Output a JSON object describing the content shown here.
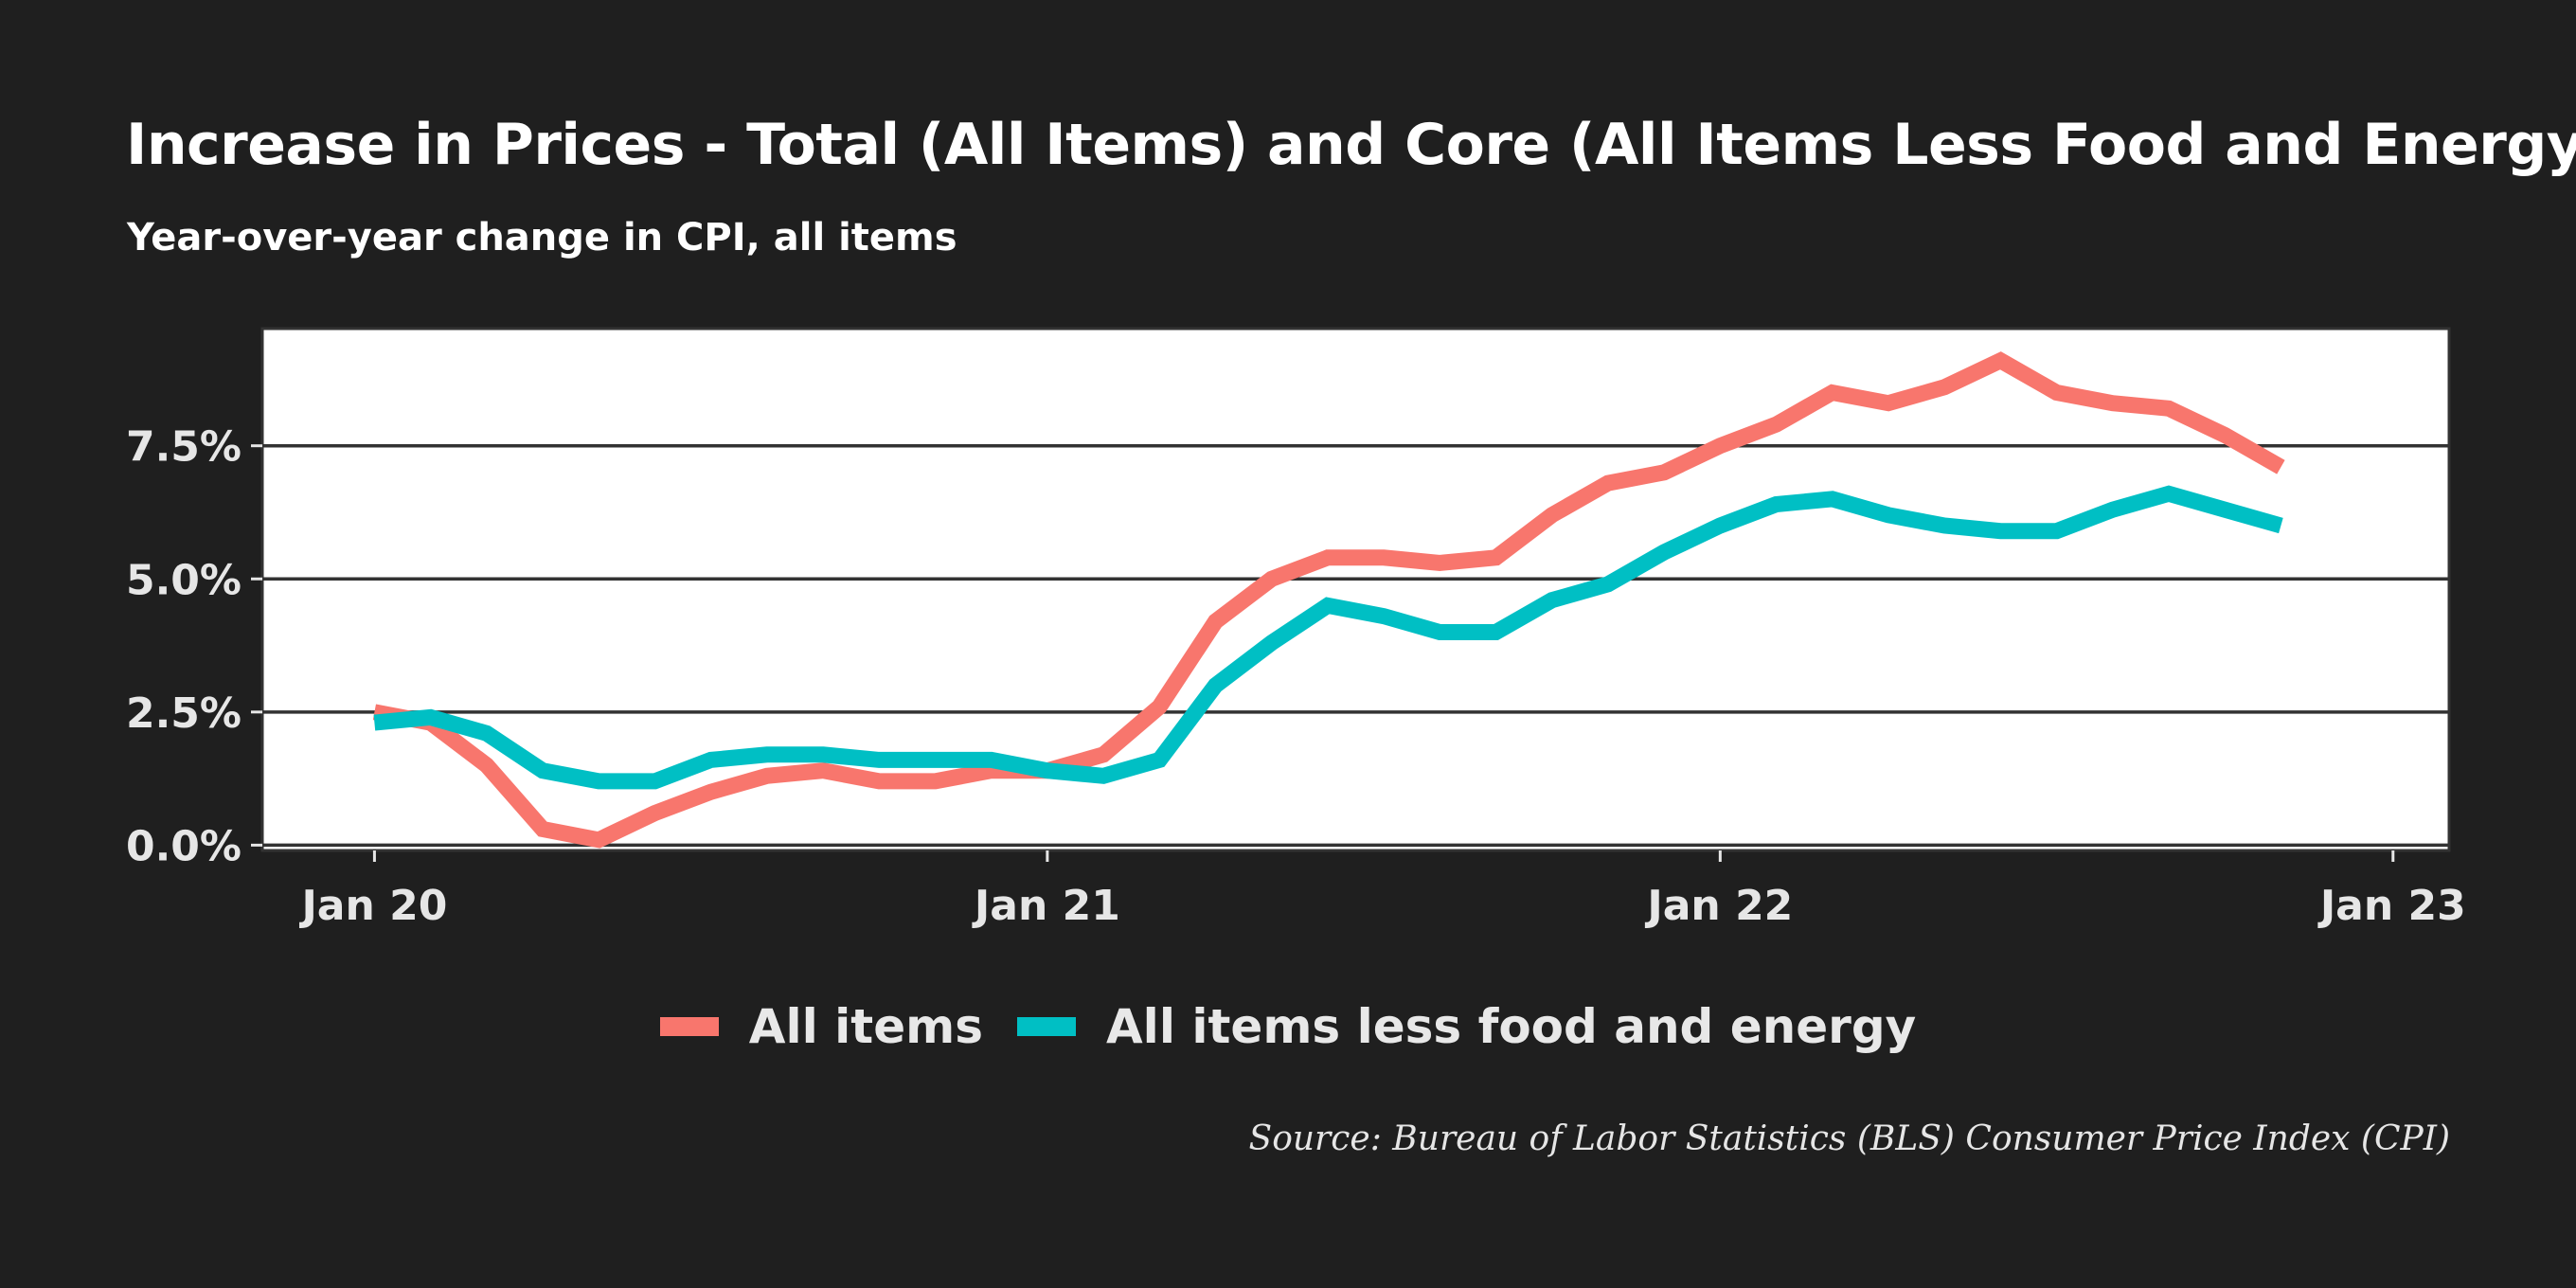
{
  "title": "Increase in Prices - Total (All Items) and Core (All Items Less Food and Energy)",
  "subtitle": "Year-over-year change in CPI, all items",
  "source": "Source: Bureau of Labor Statistics (BLS) Consumer Price Index (CPI)",
  "chart_data": {
    "type": "line",
    "x": [
      "2020-01",
      "2020-02",
      "2020-03",
      "2020-04",
      "2020-05",
      "2020-06",
      "2020-07",
      "2020-08",
      "2020-09",
      "2020-10",
      "2020-11",
      "2020-12",
      "2021-01",
      "2021-02",
      "2021-03",
      "2021-04",
      "2021-05",
      "2021-06",
      "2021-07",
      "2021-08",
      "2021-09",
      "2021-10",
      "2021-11",
      "2021-12",
      "2022-01",
      "2022-02",
      "2022-03",
      "2022-04",
      "2022-05",
      "2022-06",
      "2022-07",
      "2022-08",
      "2022-09",
      "2022-10",
      "2022-11"
    ],
    "series": [
      {
        "name": "All items",
        "color": "#f8766d",
        "values": [
          2.5,
          2.3,
          1.5,
          0.3,
          0.1,
          0.6,
          1.0,
          1.3,
          1.4,
          1.2,
          1.2,
          1.4,
          1.4,
          1.7,
          2.6,
          4.2,
          5.0,
          5.4,
          5.4,
          5.3,
          5.4,
          6.2,
          6.8,
          7.0,
          7.5,
          7.9,
          8.5,
          8.3,
          8.6,
          9.1,
          8.5,
          8.3,
          8.2,
          7.7,
          7.1
        ]
      },
      {
        "name": "All items less food and energy",
        "color": "#00bfc4",
        "values": [
          2.3,
          2.4,
          2.1,
          1.4,
          1.2,
          1.2,
          1.6,
          1.7,
          1.7,
          1.6,
          1.6,
          1.6,
          1.4,
          1.3,
          1.6,
          3.0,
          3.8,
          4.5,
          4.3,
          4.0,
          4.0,
          4.6,
          4.9,
          5.5,
          6.0,
          6.4,
          6.5,
          6.2,
          6.0,
          5.9,
          5.9,
          6.3,
          6.6,
          6.3,
          6.0
        ]
      }
    ],
    "x_ticks": [
      {
        "date": "2020-01",
        "label": "Jan 20"
      },
      {
        "date": "2021-01",
        "label": "Jan 21"
      },
      {
        "date": "2022-01",
        "label": "Jan 22"
      },
      {
        "date": "2023-01",
        "label": "Jan 23"
      }
    ],
    "y_ticks": [
      0,
      2.5,
      5,
      7.5
    ],
    "y_tick_labels": [
      "0.0%",
      "2.5%",
      "5.0%",
      "7.5%"
    ],
    "ylim": [
      -0.1,
      9.7
    ],
    "xlim": [
      "2019-11",
      "2023-02"
    ],
    "grid": "horizontal",
    "legend": "bottom",
    "background": "#1f1f1f",
    "panel_background": "#ffffff"
  }
}
